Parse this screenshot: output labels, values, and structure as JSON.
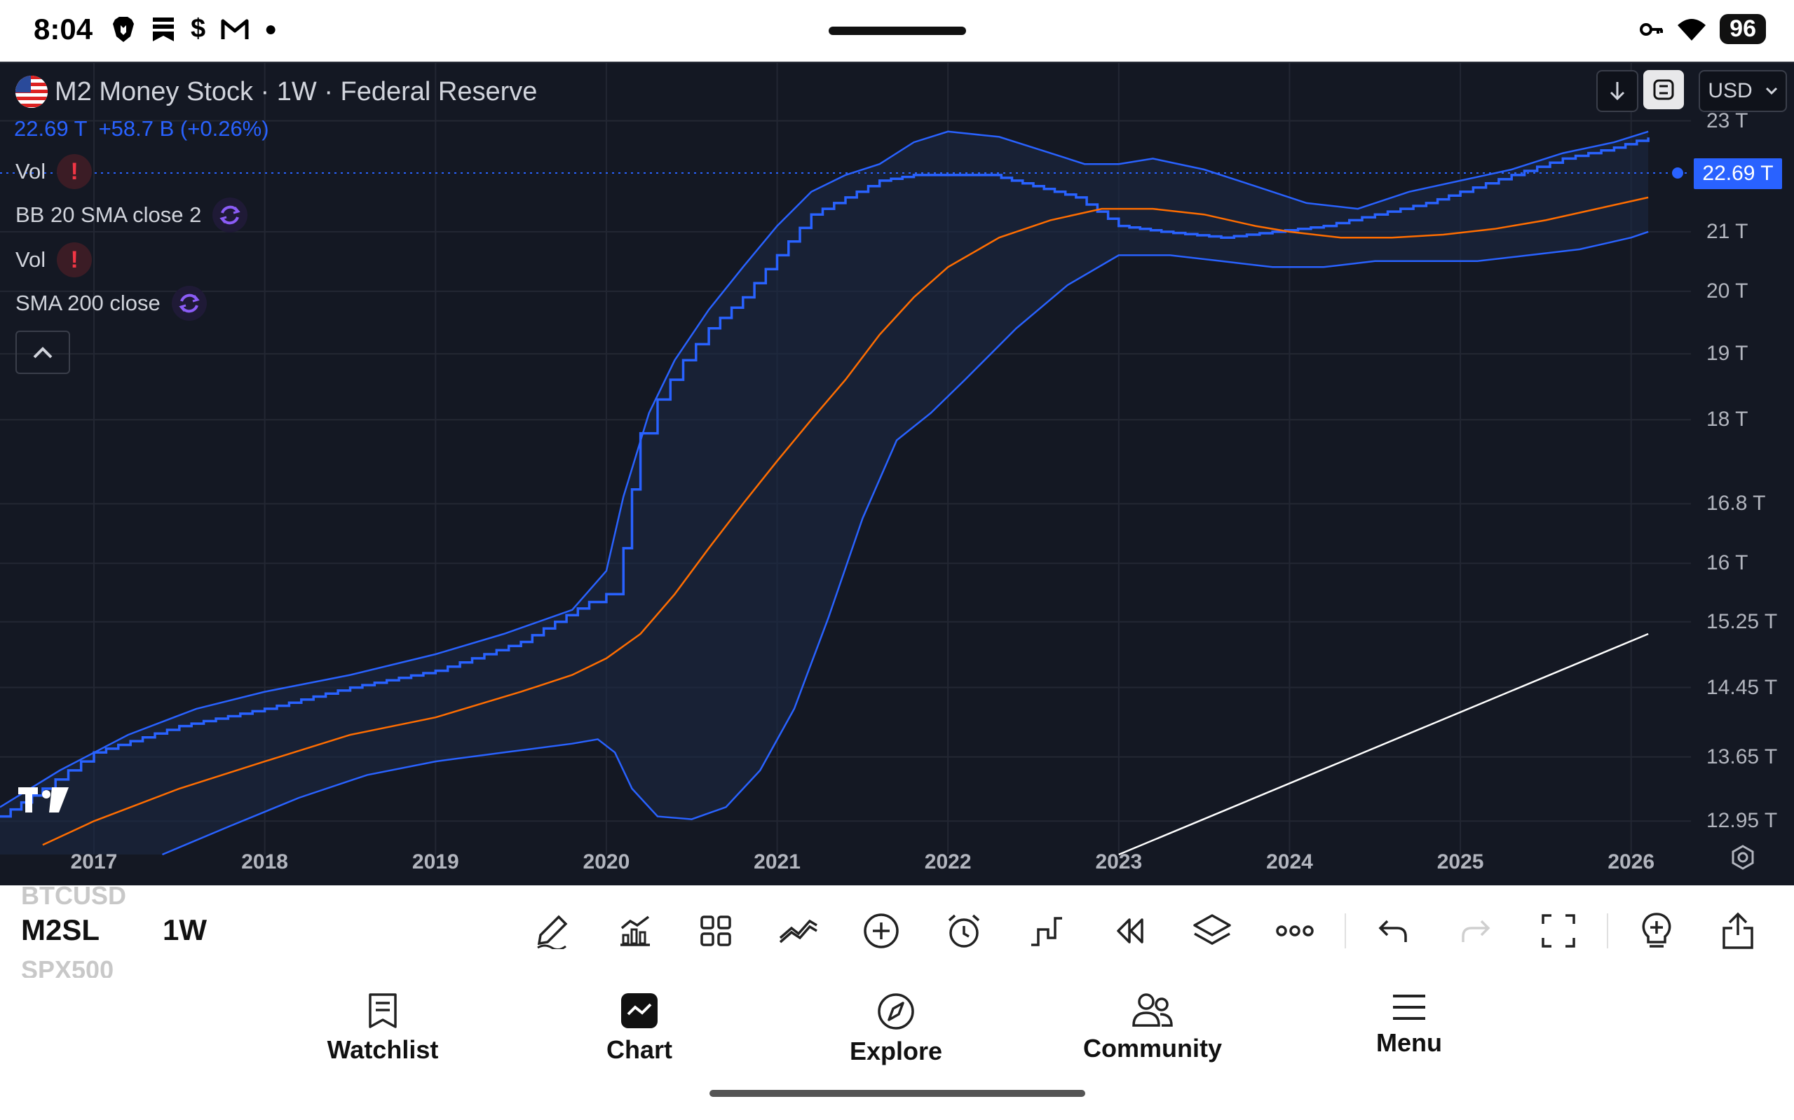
{
  "status_bar": {
    "time": "8:04",
    "battery": "96",
    "left_icons": [
      "brave-icon",
      "bookmark-icon",
      "dollar-icon",
      "gmail-icon",
      "dot-icon"
    ],
    "right_icons": [
      "key-icon",
      "wifi-icon",
      "battery-icon"
    ]
  },
  "chart_header": {
    "title": "M2 Money Stock · 1W · Federal Reserve",
    "last_value": "22.69 T",
    "change": "+58.7 B (+0.26%)"
  },
  "indicators": [
    {
      "label": "Vol",
      "state": "error"
    },
    {
      "label": "BB 20 SMA close 2",
      "state": "loading"
    },
    {
      "label": "Vol",
      "state": "error"
    },
    {
      "label": "SMA 200 close",
      "state": "loading"
    }
  ],
  "currency": "USD",
  "price_tag": "22.69 T",
  "price_axis": {
    "labels": [
      "23 T",
      "21 T",
      "20 T",
      "19 T",
      "18 T",
      "16.8 T",
      "16 T",
      "15.25 T",
      "14.45 T",
      "13.65 T",
      "12.95 T"
    ],
    "values": [
      23,
      21,
      20,
      19,
      18,
      16.8,
      16,
      15.25,
      14.45,
      13.65,
      12.95
    ]
  },
  "time_axis": {
    "labels": [
      "2017",
      "2018",
      "2019",
      "2020",
      "2021",
      "2022",
      "2023",
      "2024",
      "2025",
      "2026"
    ],
    "years": [
      2017,
      2018,
      2019,
      2020,
      2021,
      2022,
      2023,
      2024,
      2025,
      2026
    ]
  },
  "chart_data": {
    "type": "line",
    "scale": "log",
    "ylim": [
      12.6,
      23.3
    ],
    "xlim": [
      2016.45,
      2026.35
    ],
    "series": [
      {
        "name": "",
        "color": "#2962ff",
        "style": "step",
        "x": [
          2016.45,
          2016.7,
          2017.0,
          2017.5,
          2018.0,
          2018.5,
          2019.0,
          2019.5,
          2019.9,
          2020.0,
          2020.1,
          2020.15,
          2020.2,
          2020.3,
          2020.45,
          2020.6,
          2020.8,
          2021.0,
          2021.2,
          2021.4,
          2021.6,
          2021.8,
          2022.0,
          2022.25,
          2022.5,
          2022.75,
          2023.0,
          2023.25,
          2023.6,
          2023.9,
          2024.2,
          2024.5,
          2024.8,
          2025.0,
          2025.3,
          2025.6,
          2025.9,
          2026.1
        ],
        "y": [
          13.0,
          13.3,
          13.7,
          14.0,
          14.2,
          14.45,
          14.65,
          15.0,
          15.5,
          15.6,
          16.2,
          17.0,
          17.8,
          18.3,
          18.9,
          19.4,
          19.9,
          20.6,
          21.3,
          21.6,
          21.9,
          22.0,
          22.0,
          22.0,
          21.8,
          21.6,
          21.1,
          21.0,
          20.9,
          21.0,
          21.1,
          21.3,
          21.5,
          21.7,
          22.0,
          22.3,
          22.5,
          22.69
        ]
      },
      {
        "name": "",
        "color": "#2962ff",
        "style": "line",
        "x": [
          2016.45,
          2016.8,
          2017.2,
          2017.6,
          2018.0,
          2018.5,
          2019.0,
          2019.4,
          2019.8,
          2020.0,
          2020.1,
          2020.25,
          2020.4,
          2020.6,
          2020.8,
          2021.0,
          2021.2,
          2021.4,
          2021.6,
          2021.8,
          2022.0,
          2022.3,
          2022.6,
          2022.8,
          2023.0,
          2023.2,
          2023.5,
          2023.8,
          2024.1,
          2024.4,
          2024.7,
          2025.0,
          2025.3,
          2025.6,
          2025.9,
          2026.1
        ],
        "y": [
          13.1,
          13.5,
          13.9,
          14.2,
          14.4,
          14.6,
          14.85,
          15.1,
          15.4,
          15.9,
          16.9,
          18.1,
          18.9,
          19.7,
          20.4,
          21.1,
          21.7,
          22.0,
          22.2,
          22.6,
          22.8,
          22.7,
          22.4,
          22.2,
          22.2,
          22.3,
          22.1,
          21.8,
          21.5,
          21.4,
          21.7,
          21.9,
          22.1,
          22.4,
          22.6,
          22.8
        ]
      },
      {
        "name": "",
        "color": "#2962ff",
        "style": "line",
        "x": [
          2017.4,
          2017.8,
          2018.2,
          2018.6,
          2019.0,
          2019.4,
          2019.8,
          2019.95,
          2020.05,
          2020.15,
          2020.3,
          2020.5,
          2020.7,
          2020.9,
          2021.1,
          2021.3,
          2021.5,
          2021.7,
          2021.9,
          2022.1,
          2022.4,
          2022.7,
          2023.0,
          2023.3,
          2023.6,
          2023.9,
          2024.2,
          2024.5,
          2024.8,
          2025.1,
          2025.4,
          2025.7,
          2026.0,
          2026.1
        ],
        "y": [
          12.6,
          12.9,
          13.2,
          13.45,
          13.6,
          13.7,
          13.8,
          13.85,
          13.7,
          13.3,
          13.0,
          12.97,
          13.1,
          13.5,
          14.2,
          15.3,
          16.6,
          17.7,
          18.1,
          18.6,
          19.4,
          20.1,
          20.6,
          20.6,
          20.5,
          20.4,
          20.4,
          20.5,
          20.5,
          20.5,
          20.6,
          20.7,
          20.9,
          21.0
        ]
      },
      {
        "name": "",
        "color": "#ff6d00",
        "style": "line",
        "x": [
          2016.7,
          2017.0,
          2017.5,
          2018.0,
          2018.5,
          2019.0,
          2019.5,
          2019.8,
          2020.0,
          2020.2,
          2020.4,
          2020.6,
          2020.8,
          2021.0,
          2021.2,
          2021.4,
          2021.6,
          2021.8,
          2022.0,
          2022.3,
          2022.6,
          2022.9,
          2023.2,
          2023.5,
          2023.8,
          2024.0,
          2024.3,
          2024.6,
          2024.9,
          2025.2,
          2025.5,
          2025.8,
          2026.1
        ],
        "y": [
          12.7,
          12.95,
          13.3,
          13.6,
          13.9,
          14.1,
          14.4,
          14.6,
          14.8,
          15.1,
          15.6,
          16.2,
          16.8,
          17.4,
          18.0,
          18.6,
          19.3,
          19.9,
          20.4,
          20.9,
          21.2,
          21.4,
          21.4,
          21.3,
          21.1,
          21.0,
          20.9,
          20.9,
          20.95,
          21.05,
          21.2,
          21.4,
          21.6
        ]
      },
      {
        "name": "",
        "color": "#ffffff",
        "style": "line",
        "x": [
          2023.0,
          2026.1
        ],
        "y": [
          12.6,
          15.1
        ]
      }
    ]
  },
  "toolbar": {
    "symbol_prev": "BTCUSD",
    "symbol": "M2SL",
    "symbol_next": "SPX500",
    "interval": "1W",
    "tools": [
      "draw-icon",
      "indicators-icon",
      "layouts-icon",
      "compare-icon",
      "add-icon",
      "alert-icon",
      "chart-type-icon",
      "replay-icon",
      "layers-icon",
      "more-icon",
      "undo-icon",
      "redo-icon",
      "fullscreen-icon",
      "ideas-icon",
      "share-icon"
    ]
  },
  "bottom_nav": [
    {
      "label": "Watchlist",
      "icon": "watchlist-icon"
    },
    {
      "label": "Chart",
      "icon": "chart-icon"
    },
    {
      "label": "Explore",
      "icon": "explore-icon"
    },
    {
      "label": "Community",
      "icon": "community-icon"
    },
    {
      "label": "Menu",
      "icon": "menu-icon"
    }
  ]
}
